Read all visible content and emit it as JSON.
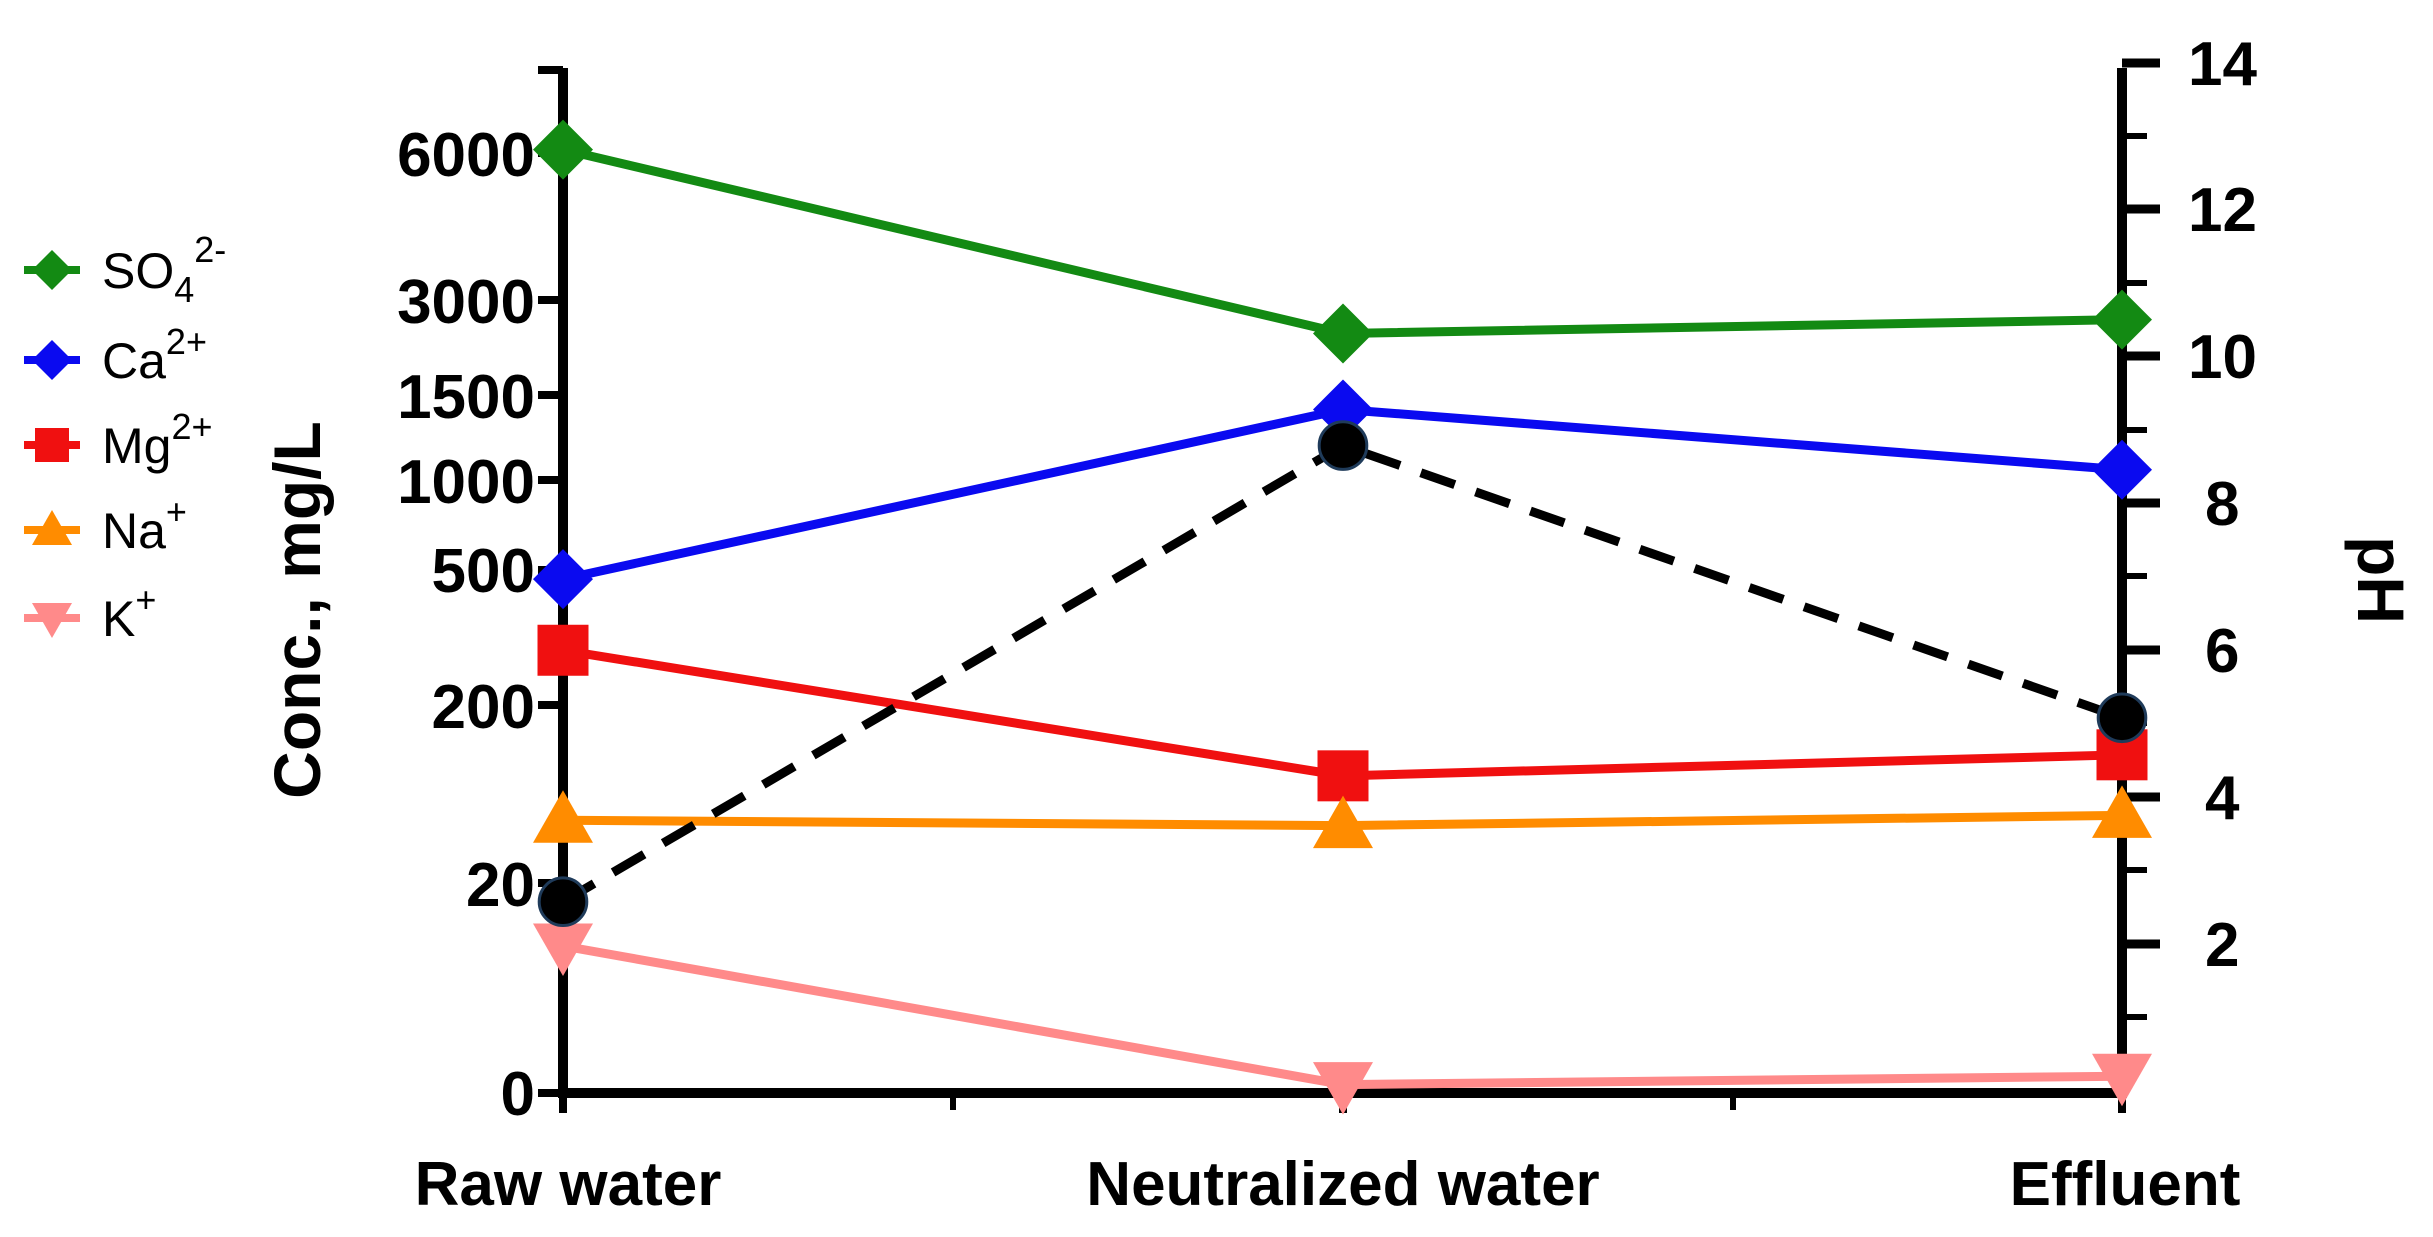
{
  "chart_data": {
    "type": "line",
    "categories": [
      "Raw water",
      "Neutralized water",
      "Effluent"
    ],
    "ylabel": "Conc., mg/L",
    "y2label": "pH",
    "y_ticks": [
      "0",
      "20",
      "200",
      "500",
      "1000",
      "1500",
      "3000",
      "6000"
    ],
    "y2_ticks": [
      "2",
      "4",
      "6",
      "8",
      "10",
      "12",
      "14"
    ],
    "y2lim": [
      0,
      14
    ],
    "series": [
      {
        "name": "SO4 2-",
        "label_base": "SO",
        "label_sub": "4",
        "label_sup": "2-",
        "color": "#138a13",
        "marker": "diamond",
        "axis": "left",
        "values": [
          6100,
          2350,
          2600
        ]
      },
      {
        "name": "Ca2+",
        "label_base": "Ca",
        "label_sub": "",
        "label_sup": "2+",
        "color": "#0a0af0",
        "marker": "diamond",
        "axis": "left",
        "values": [
          470,
          1400,
          1050
        ]
      },
      {
        "name": "Mg2+",
        "label_base": "Mg",
        "label_sub": "",
        "label_sup": "2+",
        "color": "#f01010",
        "marker": "square",
        "axis": "left",
        "values": [
          290,
          80,
          105
        ]
      },
      {
        "name": "Na+",
        "label_base": "Na",
        "label_sub": "",
        "label_sup": "+",
        "color": "#ff8c00",
        "marker": "triangle-up",
        "axis": "left",
        "values": [
          45,
          42,
          48
        ]
      },
      {
        "name": "K+",
        "label_base": "K",
        "label_sub": "",
        "label_sup": "+",
        "color": "#ff8a8a",
        "marker": "triangle-down",
        "axis": "left",
        "values": [
          14,
          0.8,
          1.6
        ]
      },
      {
        "name": "pH",
        "color": "#000000",
        "marker": "circle",
        "axis": "right",
        "dashed": true,
        "values": [
          2.6,
          8.8,
          5.1
        ]
      }
    ]
  }
}
